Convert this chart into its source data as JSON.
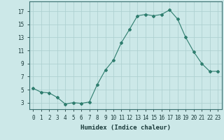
{
  "x": [
    0,
    1,
    2,
    3,
    4,
    5,
    6,
    7,
    8,
    9,
    10,
    11,
    12,
    13,
    14,
    15,
    16,
    17,
    18,
    19,
    20,
    21,
    22,
    23
  ],
  "y": [
    5.2,
    4.6,
    4.5,
    3.8,
    2.8,
    3.0,
    2.9,
    3.1,
    5.8,
    8.0,
    9.5,
    12.2,
    14.2,
    16.3,
    16.5,
    16.3,
    16.5,
    17.2,
    15.8,
    13.0,
    10.8,
    9.0,
    7.8,
    7.8
  ],
  "line_color": "#2e7d6e",
  "marker": "D",
  "markersize": 2.0,
  "bg_color": "#cce8e8",
  "grid_color": "#aacece",
  "xlabel": "Humidex (Indice chaleur)",
  "yticks": [
    3,
    5,
    7,
    9,
    11,
    13,
    15,
    17
  ],
  "xticks": [
    0,
    1,
    2,
    3,
    4,
    5,
    6,
    7,
    8,
    9,
    10,
    11,
    12,
    13,
    14,
    15,
    16,
    17,
    18,
    19,
    20,
    21,
    22,
    23
  ],
  "xlim": [
    -0.5,
    23.5
  ],
  "ylim": [
    2.0,
    18.5
  ],
  "tick_fontsize": 5.5,
  "xlabel_fontsize": 6.5
}
